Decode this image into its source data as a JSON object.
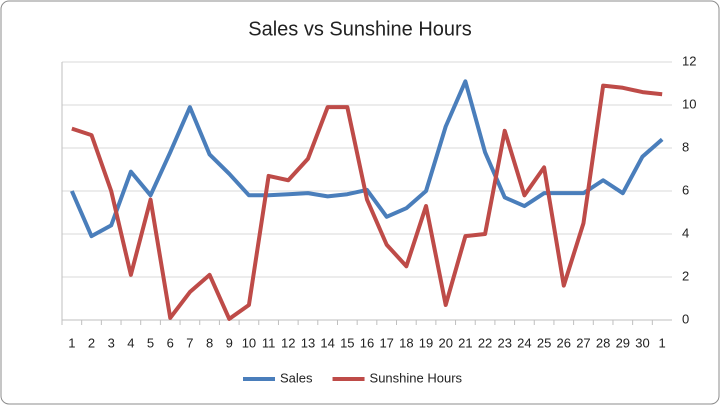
{
  "chart_data": {
    "type": "line",
    "title": "Sales vs Sunshine Hours",
    "categories": [
      "1",
      "2",
      "3",
      "4",
      "5",
      "6",
      "7",
      "8",
      "9",
      "10",
      "11",
      "12",
      "13",
      "14",
      "15",
      "16",
      "17",
      "18",
      "19",
      "20",
      "21",
      "22",
      "23",
      "24",
      "25",
      "26",
      "27",
      "28",
      "29",
      "30",
      "1"
    ],
    "series": [
      {
        "name": "Sales",
        "color": "#4a7ebb",
        "values": [
          6.0,
          3.9,
          4.4,
          6.9,
          5.8,
          7.8,
          9.9,
          7.7,
          6.8,
          5.8,
          5.8,
          5.85,
          5.9,
          5.75,
          5.85,
          6.05,
          4.8,
          5.2,
          6.0,
          9.0,
          11.1,
          7.8,
          5.7,
          5.3,
          5.9,
          5.9,
          5.9,
          6.5,
          5.9,
          7.6,
          8.4
        ]
      },
      {
        "name": "Sunshine Hours",
        "color": "#be4b48",
        "values": [
          8.9,
          8.6,
          6.0,
          2.1,
          5.6,
          0.1,
          1.3,
          2.1,
          0.05,
          0.7,
          6.7,
          6.5,
          7.5,
          9.9,
          9.9,
          5.6,
          3.5,
          2.5,
          5.3,
          0.7,
          3.9,
          4.0,
          8.8,
          5.8,
          7.1,
          1.6,
          4.5,
          10.9,
          10.8,
          10.6,
          10.5
        ]
      }
    ],
    "ylim": [
      0,
      12
    ],
    "yticks": [
      0,
      2,
      4,
      6,
      8,
      10,
      12
    ],
    "y_axis_side": "right",
    "grid": true,
    "legend_position": "bottom"
  }
}
